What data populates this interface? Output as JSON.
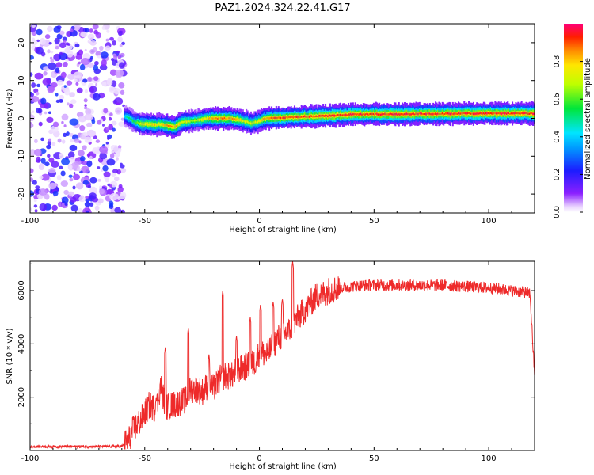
{
  "title": "PAZ1.2024.324.22.41.G17",
  "chart_data": [
    {
      "type": "heatmap",
      "xlabel": "Height of straight line (km)",
      "ylabel": "Frequency (Hz)",
      "xlim": [
        -100,
        120
      ],
      "ylim": [
        -25,
        25
      ],
      "x_ticks": [
        "-100",
        "-50",
        "0",
        "50",
        "100"
      ],
      "y_ticks": [
        "20",
        "10",
        "0",
        "-10",
        "-20"
      ],
      "colorbar": {
        "label": "Normalized spectral amplitude",
        "range": [
          0,
          1
        ],
        "ticks": [
          "0.0",
          "0.2",
          "0.4",
          "0.6",
          "0.8"
        ]
      },
      "noise_region": {
        "x": [
          -100,
          -59
        ],
        "note_level": 0.1
      },
      "ridge": {
        "x": [
          -59,
          -57,
          -55,
          -52,
          -49,
          -46,
          -43,
          -40,
          -37,
          -34,
          -31,
          -28,
          -25,
          -22,
          -19,
          -16,
          -13,
          -10,
          -7,
          -4,
          -1,
          2,
          5,
          8,
          11,
          14,
          17,
          20,
          25,
          30,
          35,
          40,
          50,
          60,
          70,
          80,
          90,
          100,
          110,
          120
        ],
        "frequency_hz": [
          0.5,
          0,
          -0.8,
          -1.5,
          -1.5,
          -1.7,
          -1.5,
          -2.0,
          -2.2,
          -1.0,
          -0.8,
          -0.5,
          -0.2,
          0,
          0,
          0,
          0,
          -0.3,
          -0.7,
          -1.3,
          -0.9,
          -0.1,
          0.1,
          0.2,
          0.2,
          0.3,
          0.4,
          0.5,
          0.6,
          0.7,
          0.9,
          1.0,
          1.1,
          1.1,
          1.2,
          1.2,
          1.3,
          1.3,
          1.3,
          1.3
        ],
        "amplitude": [
          0.45,
          0.55,
          0.6,
          0.75,
          0.8,
          0.85,
          0.85,
          0.9,
          0.9,
          0.8,
          0.75,
          0.7,
          0.8,
          0.85,
          0.9,
          0.92,
          0.9,
          0.85,
          0.8,
          0.75,
          0.8,
          0.9,
          0.95,
          0.95,
          0.97,
          0.97,
          0.98,
          0.98,
          0.98,
          0.99,
          1.0,
          1.0,
          1.0,
          1.0,
          1.0,
          1.0,
          1.0,
          1.0,
          1.0,
          1.0
        ]
      }
    },
    {
      "type": "line",
      "xlabel": "Height of straight line (km)",
      "ylabel": "SNR (10 * v/v)",
      "xlim": [
        -100,
        120
      ],
      "ylim": [
        0,
        7100
      ],
      "x_ticks": [
        "-100",
        "-50",
        "0",
        "50",
        "100"
      ],
      "y_ticks": [
        "2000",
        "4000",
        "6000"
      ],
      "series": [
        {
          "color": "#ee2a2a",
          "x": [
            -100,
            -90,
            -80,
            -70,
            -60,
            -57,
            -55,
            -52,
            -50,
            -48,
            -45,
            -43,
            -41,
            -38,
            -35,
            -32,
            -30,
            -27,
            -25,
            -22,
            -20,
            -17,
            -15,
            -12,
            -10,
            -7,
            -5,
            -2,
            0,
            3,
            5,
            8,
            10,
            13,
            15,
            18,
            20,
            23,
            25,
            28,
            30,
            35,
            40,
            45,
            50,
            55,
            60,
            70,
            80,
            90,
            100,
            110,
            118,
            120
          ],
          "y": [
            150,
            150,
            150,
            150,
            160,
            400,
            800,
            1100,
            1400,
            1700,
            1550,
            2500,
            1600,
            1700,
            1800,
            1900,
            2300,
            2300,
            2200,
            2500,
            2300,
            2700,
            2800,
            2800,
            3000,
            3100,
            3200,
            3300,
            3700,
            3600,
            3800,
            4200,
            4300,
            4500,
            4800,
            5100,
            5300,
            5600,
            5800,
            5900,
            6000,
            6100,
            6150,
            6200,
            6200,
            6200,
            6200,
            6200,
            6200,
            6150,
            6100,
            6000,
            5900,
            2800
          ],
          "spikes": [
            {
              "x": -45,
              "y": 2000
            },
            {
              "x": -41,
              "y": 3900
            },
            {
              "x": -31,
              "y": 4600
            },
            {
              "x": -22,
              "y": 3600
            },
            {
              "x": -16,
              "y": 6000
            },
            {
              "x": -10,
              "y": 4300
            },
            {
              "x": -4,
              "y": 5000
            },
            {
              "x": 0.5,
              "y": 5500
            },
            {
              "x": 6,
              "y": 5600
            },
            {
              "x": 10,
              "y": 5700
            },
            {
              "x": 14.5,
              "y": 7100
            }
          ],
          "noise_amplitude": 220
        }
      ]
    }
  ]
}
